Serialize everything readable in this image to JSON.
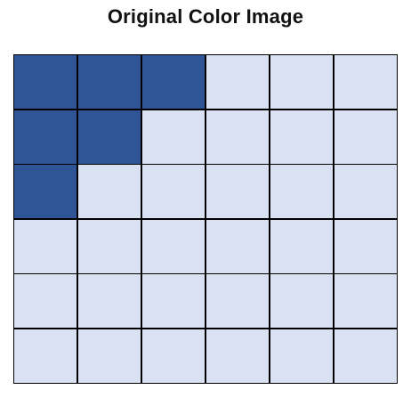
{
  "title": "Original Color Image",
  "grid": {
    "rows": 6,
    "cols": 6,
    "colors": {
      "filled": "#2f5597",
      "empty": "#dae1f3",
      "line": "#000000"
    },
    "cells": [
      [
        1,
        1,
        1,
        0,
        0,
        0
      ],
      [
        1,
        1,
        0,
        0,
        0,
        0
      ],
      [
        1,
        0,
        0,
        0,
        0,
        0
      ],
      [
        0,
        0,
        0,
        0,
        0,
        0
      ],
      [
        0,
        0,
        0,
        0,
        0,
        0
      ],
      [
        0,
        0,
        0,
        0,
        0,
        0
      ]
    ]
  }
}
